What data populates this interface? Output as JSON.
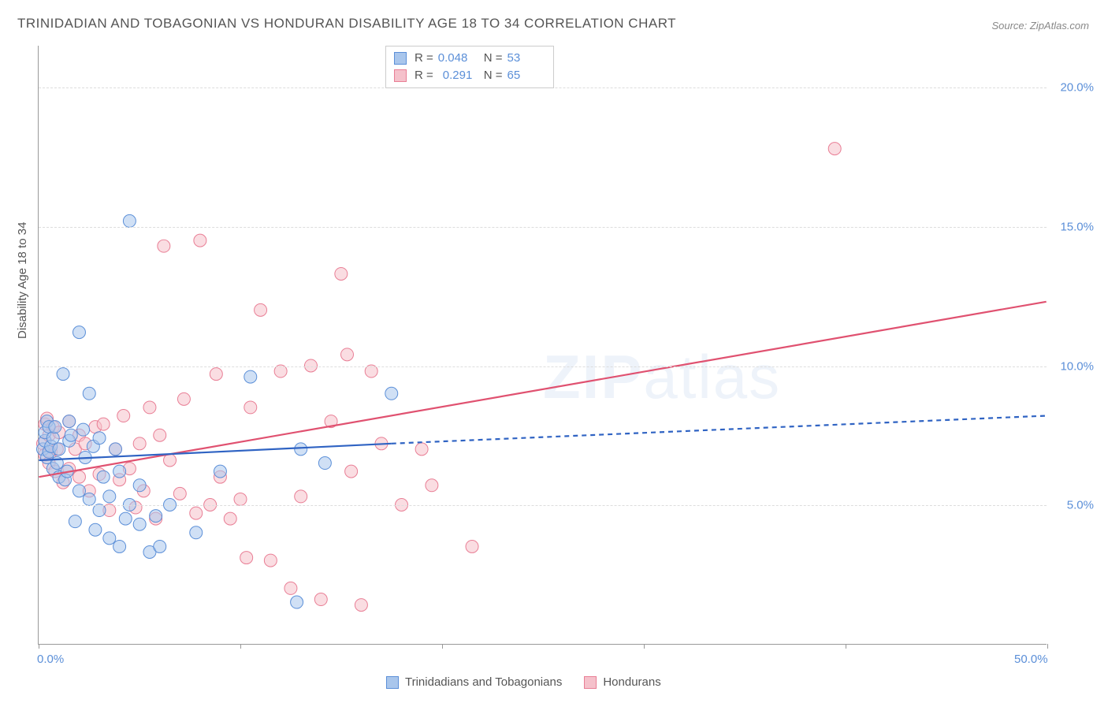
{
  "title": "TRINIDADIAN AND TOBAGONIAN VS HONDURAN DISABILITY AGE 18 TO 34 CORRELATION CHART",
  "source_prefix": "Source: ",
  "source": "ZipAtlas.com",
  "ylabel": "Disability Age 18 to 34",
  "watermark_zip": "ZIP",
  "watermark_atlas": "atlas",
  "chart": {
    "type": "scatter",
    "background_color": "#ffffff",
    "grid_color": "#dddddd",
    "axis_color": "#999999",
    "tick_label_color": "#5b8fd8",
    "xlim": [
      0,
      50
    ],
    "ylim": [
      0,
      21.5
    ],
    "yticks": [
      5,
      10,
      15,
      20
    ],
    "ytick_labels": [
      "5.0%",
      "10.0%",
      "15.0%",
      "20.0%"
    ],
    "xticks": [
      0,
      10,
      20,
      30,
      40,
      50
    ],
    "xtick_labels_shown": {
      "0": "0.0%",
      "50": "50.0%"
    },
    "marker_radius": 8,
    "marker_opacity": 0.55,
    "marker_stroke_width": 1,
    "trend_line_width": 2.2,
    "series": [
      {
        "name": "Trinidadians and Tobagonians",
        "fill": "#a9c6ec",
        "stroke": "#5b8fd8",
        "line_color": "#2f63c3",
        "r_label": "R =",
        "r_value": "0.048",
        "n_label": "N =",
        "n_value": "53",
        "trend": {
          "x1": 0,
          "y1": 6.6,
          "x2": 17.5,
          "y2": 7.2,
          "dash_extend_x": 50,
          "dash_extend_y": 8.2
        },
        "points": [
          [
            0.2,
            7.0
          ],
          [
            0.3,
            7.3
          ],
          [
            0.3,
            7.6
          ],
          [
            0.4,
            6.7
          ],
          [
            0.4,
            8.0
          ],
          [
            0.5,
            6.9
          ],
          [
            0.5,
            7.8
          ],
          [
            0.6,
            7.1
          ],
          [
            0.7,
            6.3
          ],
          [
            0.7,
            7.4
          ],
          [
            0.8,
            7.8
          ],
          [
            0.9,
            6.5
          ],
          [
            1.0,
            7.0
          ],
          [
            1.0,
            6.0
          ],
          [
            1.2,
            9.7
          ],
          [
            1.3,
            5.9
          ],
          [
            1.4,
            6.2
          ],
          [
            1.5,
            8.0
          ],
          [
            1.5,
            7.3
          ],
          [
            1.6,
            7.5
          ],
          [
            1.8,
            4.4
          ],
          [
            2.0,
            11.2
          ],
          [
            2.0,
            5.5
          ],
          [
            2.2,
            7.7
          ],
          [
            2.3,
            6.7
          ],
          [
            2.5,
            9.0
          ],
          [
            2.5,
            5.2
          ],
          [
            2.7,
            7.1
          ],
          [
            2.8,
            4.1
          ],
          [
            3.0,
            7.4
          ],
          [
            3.0,
            4.8
          ],
          [
            3.2,
            6.0
          ],
          [
            3.5,
            3.8
          ],
          [
            3.5,
            5.3
          ],
          [
            3.8,
            7.0
          ],
          [
            4.0,
            3.5
          ],
          [
            4.0,
            6.2
          ],
          [
            4.3,
            4.5
          ],
          [
            4.5,
            5.0
          ],
          [
            4.5,
            15.2
          ],
          [
            5.0,
            4.3
          ],
          [
            5.0,
            5.7
          ],
          [
            5.5,
            3.3
          ],
          [
            5.8,
            4.6
          ],
          [
            6.0,
            3.5
          ],
          [
            6.5,
            5.0
          ],
          [
            9.0,
            6.2
          ],
          [
            10.5,
            9.6
          ],
          [
            12.8,
            1.5
          ],
          [
            13.0,
            7.0
          ],
          [
            14.2,
            6.5
          ],
          [
            17.5,
            9.0
          ],
          [
            7.8,
            4.0
          ]
        ]
      },
      {
        "name": "Hondurans",
        "fill": "#f5c1cb",
        "stroke": "#e97e95",
        "line_color": "#e05170",
        "r_label": "R =",
        "r_value": "0.291",
        "n_label": "N =",
        "n_value": "65",
        "trend": {
          "x1": 0,
          "y1": 6.0,
          "x2": 50,
          "y2": 12.3
        },
        "points": [
          [
            0.2,
            7.2
          ],
          [
            0.3,
            7.9
          ],
          [
            0.3,
            6.8
          ],
          [
            0.4,
            8.1
          ],
          [
            0.5,
            6.5
          ],
          [
            0.5,
            7.5
          ],
          [
            0.6,
            6.9
          ],
          [
            0.7,
            7.8
          ],
          [
            0.8,
            6.2
          ],
          [
            0.9,
            7.0
          ],
          [
            1.0,
            7.6
          ],
          [
            1.2,
            5.8
          ],
          [
            1.5,
            8.0
          ],
          [
            1.5,
            6.3
          ],
          [
            1.8,
            7.0
          ],
          [
            2.0,
            6.0
          ],
          [
            2.0,
            7.5
          ],
          [
            2.3,
            7.2
          ],
          [
            2.5,
            5.5
          ],
          [
            2.8,
            7.8
          ],
          [
            3.0,
            6.1
          ],
          [
            3.2,
            7.9
          ],
          [
            3.5,
            4.8
          ],
          [
            3.8,
            7.0
          ],
          [
            4.0,
            5.9
          ],
          [
            4.2,
            8.2
          ],
          [
            4.5,
            6.3
          ],
          [
            4.8,
            4.9
          ],
          [
            5.0,
            7.2
          ],
          [
            5.2,
            5.5
          ],
          [
            5.5,
            8.5
          ],
          [
            5.8,
            4.5
          ],
          [
            6.0,
            7.5
          ],
          [
            6.2,
            14.3
          ],
          [
            6.5,
            6.6
          ],
          [
            7.0,
            5.4
          ],
          [
            7.2,
            8.8
          ],
          [
            7.8,
            4.7
          ],
          [
            8.0,
            14.5
          ],
          [
            8.5,
            5.0
          ],
          [
            9.0,
            6.0
          ],
          [
            9.5,
            4.5
          ],
          [
            10.0,
            5.2
          ],
          [
            10.3,
            3.1
          ],
          [
            10.5,
            8.5
          ],
          [
            11.0,
            12.0
          ],
          [
            11.5,
            3.0
          ],
          [
            12.0,
            9.8
          ],
          [
            12.5,
            2.0
          ],
          [
            13.0,
            5.3
          ],
          [
            13.5,
            10.0
          ],
          [
            14.0,
            1.6
          ],
          [
            14.5,
            8.0
          ],
          [
            15.0,
            13.3
          ],
          [
            15.3,
            10.4
          ],
          [
            15.5,
            6.2
          ],
          [
            16.0,
            1.4
          ],
          [
            16.5,
            9.8
          ],
          [
            18.0,
            5.0
          ],
          [
            19.0,
            7.0
          ],
          [
            19.5,
            5.7
          ],
          [
            21.5,
            3.5
          ],
          [
            39.5,
            17.8
          ],
          [
            17.0,
            7.2
          ],
          [
            8.8,
            9.7
          ]
        ]
      }
    ]
  },
  "legend_bottom": {
    "series1": "Trinidadians and Tobagonians",
    "series2": "Hondurans"
  }
}
